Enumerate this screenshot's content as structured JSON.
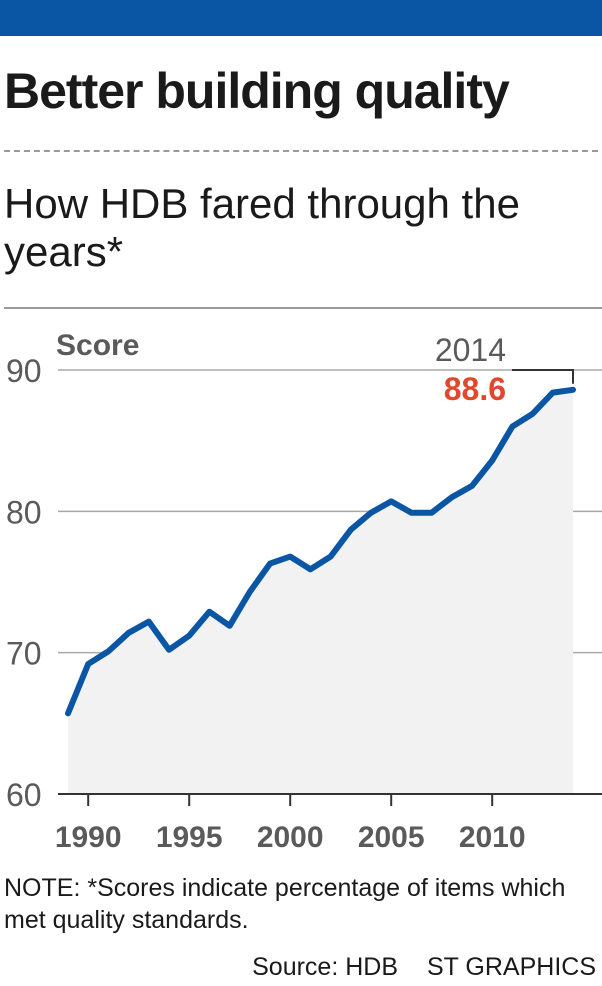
{
  "header": {
    "title": "Better building quality",
    "subtitle": "How HDB fared through the years*"
  },
  "chart_data": {
    "type": "area",
    "ylabel": "Score",
    "ylim": [
      60,
      90
    ],
    "yticks": [
      60,
      70,
      80,
      90
    ],
    "xlim": [
      1989,
      2014
    ],
    "xticks": [
      1990,
      1995,
      2000,
      2005,
      2010
    ],
    "grid": true,
    "x": [
      1989,
      1990,
      1991,
      1992,
      1993,
      1994,
      1995,
      1996,
      1997,
      1998,
      1999,
      2000,
      2001,
      2002,
      2003,
      2004,
      2005,
      2006,
      2007,
      2008,
      2009,
      2010,
      2011,
      2012,
      2013,
      2014
    ],
    "series": [
      {
        "values": [
          65.7,
          69.2,
          70.1,
          71.4,
          72.2,
          70.2,
          71.2,
          72.9,
          71.9,
          74.3,
          76.3,
          76.8,
          75.9,
          76.8,
          78.7,
          79.9,
          80.7,
          79.9,
          79.9,
          81.0,
          81.8,
          83.6,
          86.0,
          86.9,
          88.4,
          88.6
        ]
      }
    ],
    "line_color": "#0a56a4",
    "fill_color": "#f1f2f1",
    "annotation": {
      "year": "2014",
      "value": "88.6",
      "value_color": "#e2462c"
    }
  },
  "footer": {
    "note": "NOTE: *Scores indicate percentage of items which met quality standards.",
    "source": "Source: HDB",
    "credit": "ST GRAPHICS"
  }
}
